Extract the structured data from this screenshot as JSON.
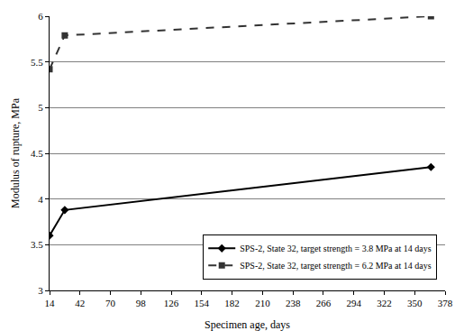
{
  "chart_data": {
    "type": "line",
    "x_label": "Specimen age, days",
    "y_label": "Modulus of rupture, MPa",
    "xlim": [
      14,
      378
    ],
    "xticks": [
      14,
      42,
      70,
      98,
      126,
      154,
      182,
      210,
      238,
      266,
      294,
      322,
      350,
      378
    ],
    "ylim": [
      3,
      6
    ],
    "yticks": [
      3,
      3.5,
      4,
      4.5,
      5,
      5.5,
      6
    ],
    "grid": true,
    "legend": "lower right",
    "series": [
      {
        "name": "SPS-2, State 32, target strength = 3.8 MPa at 14 days",
        "color": "#000000",
        "marker": "diamond",
        "line_style": "solid",
        "x": [
          14,
          28,
          365
        ],
        "values": [
          3.6,
          3.88,
          4.35
        ]
      },
      {
        "name": "SPS-2, State 32, target strength = 6.2 MPa at 14 days",
        "color": "#333333",
        "marker": "square",
        "line_style": "dashed",
        "x": [
          14,
          28,
          365
        ],
        "values": [
          5.42,
          5.79,
          6.0
        ]
      }
    ]
  }
}
